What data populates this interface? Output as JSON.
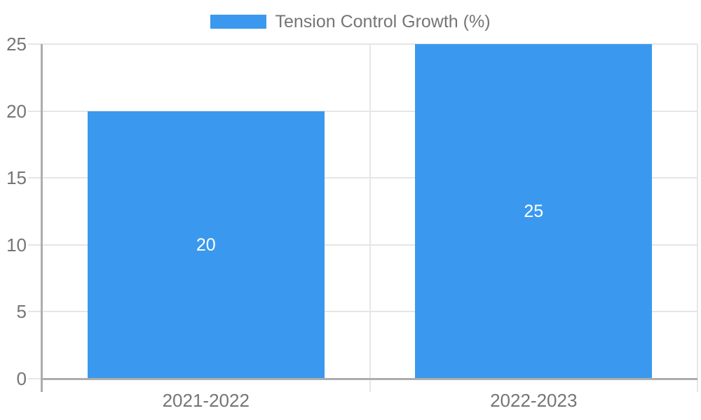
{
  "chart_data": {
    "type": "bar",
    "title": "",
    "legend": {
      "position": "top",
      "entries": [
        {
          "label": "Tension Control Growth (%)",
          "color": "#3a99ee"
        }
      ]
    },
    "categories": [
      "2021-2022",
      "2022-2023"
    ],
    "series": [
      {
        "name": "Tension Control Growth (%)",
        "values": [
          20,
          25
        ]
      }
    ],
    "value_labels": [
      "20",
      "25"
    ],
    "xlabel": "",
    "ylabel": "",
    "ylim": [
      0,
      25
    ],
    "yticks": [
      0,
      5,
      10,
      15,
      20,
      25
    ],
    "grid": true,
    "colors": {
      "bar": "#3a99ee",
      "value_label_text": "#ffffff",
      "axis_text": "#757575",
      "gridline": "#e6e6e6",
      "axis_line": "#adadad",
      "background": "#ffffff"
    }
  }
}
